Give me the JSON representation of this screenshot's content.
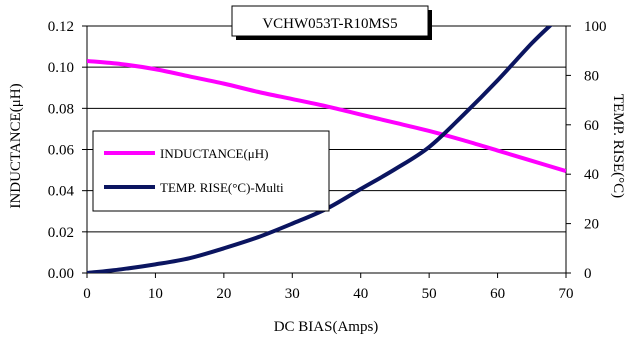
{
  "chart_data": {
    "type": "line",
    "title": "VCHW053T-R10MS5",
    "xlabel": "DC BIAS(Amps)",
    "ylabel_left": "INDUCTANCE(μH)",
    "ylabel_right": "TEMP. RISE(°C)",
    "xlim": [
      0,
      70
    ],
    "ylim_left": [
      0,
      0.12
    ],
    "ylim_right": [
      0,
      100
    ],
    "x_ticks": [
      "0",
      "10",
      "20",
      "30",
      "40",
      "50",
      "60",
      "70"
    ],
    "y_left_ticks": [
      "0.00",
      "0.02",
      "0.04",
      "0.06",
      "0.08",
      "0.10",
      "0.12"
    ],
    "y_right_ticks": [
      "0",
      "20",
      "40",
      "60",
      "80",
      "100"
    ],
    "grid": "horizontal",
    "legend_position": "left-middle",
    "series": [
      {
        "name": "INDUCTANCE(μH)",
        "axis": "left",
        "color": "#ff00ff",
        "x": [
          0,
          5,
          10,
          15,
          20,
          25,
          30,
          35,
          40,
          45,
          50,
          55,
          60,
          65,
          70
        ],
        "y": [
          0.103,
          0.1015,
          0.099,
          0.0955,
          0.092,
          0.088,
          0.0845,
          0.081,
          0.077,
          0.073,
          0.069,
          0.0645,
          0.0595,
          0.0545,
          0.0495
        ]
      },
      {
        "name": "TEMP. RISE(°C)-Multi",
        "axis": "right",
        "color": "#0b1560",
        "x": [
          0,
          5,
          10,
          15,
          20,
          25,
          30,
          35,
          40,
          45,
          50,
          55,
          60,
          65,
          68
        ],
        "y": [
          0,
          1.5,
          3.5,
          6,
          10,
          14.5,
          20,
          26,
          34,
          42,
          51,
          64,
          78,
          93,
          101
        ]
      }
    ]
  }
}
